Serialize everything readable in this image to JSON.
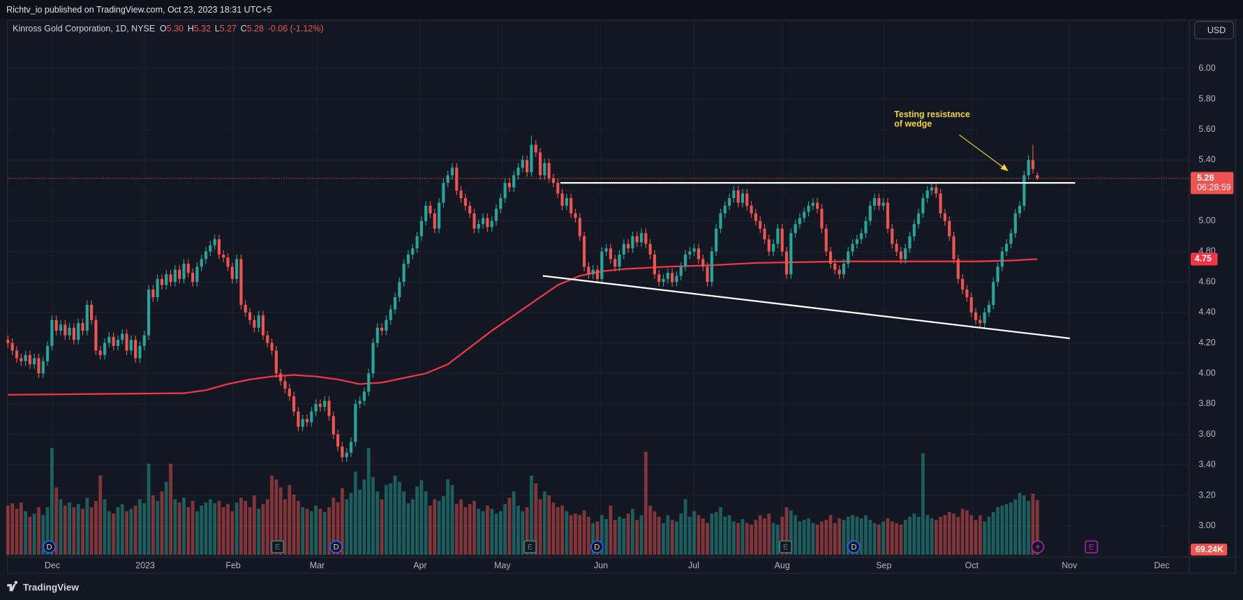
{
  "top_bar": {
    "text": "Richtv_io published on TradingView.com, Oct 23, 2023 18:31 UTC+5"
  },
  "footer": {
    "logo_text": "TradingView"
  },
  "chart_data": {
    "type": "candlestick",
    "title": "Kinross Gold Corporation, 1D, NYSE",
    "header_values": [
      {
        "key": "O",
        "label": "5.30"
      },
      {
        "key": "H",
        "label": "5.32"
      },
      {
        "key": "L",
        "label": "5.27"
      },
      {
        "key": "C",
        "label": "5.28"
      }
    ],
    "header_change": "-0.06 (-1.12%)",
    "currency": "USD",
    "colors": {
      "up": "#26a69a",
      "down": "#ef5350"
    },
    "grid": true,
    "xlim": [
      0,
      268.5
    ],
    "xticks": [
      {
        "value": 10.1,
        "label": "Dec"
      },
      {
        "value": 31.2,
        "label": "2023"
      },
      {
        "value": 51.2,
        "label": "Feb"
      },
      {
        "value": 70.3,
        "label": "Mar"
      },
      {
        "value": 93.7,
        "label": "Apr"
      },
      {
        "value": 112.4,
        "label": "May"
      },
      {
        "value": 134.8,
        "label": "Jun"
      },
      {
        "value": 155.9,
        "label": "Jul"
      },
      {
        "value": 176.0,
        "label": "Aug"
      },
      {
        "value": 199.1,
        "label": "Sep"
      },
      {
        "value": 219.1,
        "label": "Oct"
      },
      {
        "value": 241.3,
        "label": "Nov"
      },
      {
        "value": 262.3,
        "label": "Dec"
      }
    ],
    "ylim": [
      2.81,
      6.2
    ],
    "yticks": [
      {
        "value": 3,
        "label": "3.00"
      },
      {
        "value": 3.2,
        "label": "3.20"
      },
      {
        "value": 3.4,
        "label": "3.40"
      },
      {
        "value": 3.6,
        "label": "3.60"
      },
      {
        "value": 3.8,
        "label": "3.80"
      },
      {
        "value": 4,
        "label": "4.00"
      },
      {
        "value": 4.2,
        "label": "4.20"
      },
      {
        "value": 4.4,
        "label": "4.40"
      },
      {
        "value": 4.6,
        "label": "4.60"
      },
      {
        "value": 4.8,
        "label": "4.80"
      },
      {
        "value": 5,
        "label": "5.00"
      },
      {
        "value": 5.2,
        "label": "5.20"
      },
      {
        "value": 5.4,
        "label": "5.40"
      },
      {
        "value": 5.6,
        "label": "5.60"
      },
      {
        "value": 5.8,
        "label": "5.80"
      },
      {
        "value": 6,
        "label": "6.00"
      }
    ],
    "open": [
      4.22,
      4.2,
      4.15,
      4.1,
      4.08,
      4.12,
      4.06,
      4.1,
      4.0,
      4.08,
      4.18,
      4.35,
      4.28,
      4.32,
      4.25,
      4.3,
      4.22,
      4.33,
      4.28,
      4.45,
      4.35,
      4.15,
      4.12,
      4.2,
      4.24,
      4.18,
      4.22,
      4.26,
      4.15,
      4.22,
      4.1,
      4.18,
      4.25,
      4.55,
      4.5,
      4.62,
      4.58,
      4.65,
      4.6,
      4.68,
      4.62,
      4.72,
      4.66,
      4.6,
      4.7,
      4.75,
      4.8,
      4.84,
      4.88,
      4.78,
      4.76,
      4.7,
      4.62,
      4.75,
      4.45,
      4.4,
      4.35,
      4.3,
      4.38,
      4.25,
      4.2,
      4.15,
      4.0,
      3.95,
      3.9,
      3.85,
      3.75,
      3.65,
      3.7,
      3.68,
      3.75,
      3.8,
      3.78,
      3.82,
      3.72,
      3.6,
      3.52,
      3.45,
      3.48,
      3.55,
      3.8,
      3.82,
      3.88,
      4.0,
      4.2,
      4.3,
      4.28,
      4.35,
      4.42,
      4.5,
      4.6,
      4.72,
      4.78,
      4.82,
      4.9,
      5.0,
      5.1,
      5.05,
      4.95,
      5.12,
      5.25,
      5.3,
      5.35,
      5.2,
      5.15,
      5.1,
      5.05,
      4.95,
      4.98,
      5.02,
      4.96,
      5.0,
      5.08,
      5.15,
      5.25,
      5.22,
      5.3,
      5.35,
      5.4,
      5.32,
      5.5,
      5.45,
      5.3,
      5.38,
      5.28,
      5.25,
      5.18,
      5.1,
      5.15,
      5.05,
      5.02,
      4.9,
      4.7,
      4.65,
      4.68,
      4.62,
      4.8,
      4.82,
      4.75,
      4.7,
      4.78,
      4.85,
      4.82,
      4.9,
      4.86,
      4.92,
      4.85,
      4.78,
      4.65,
      4.6,
      4.62,
      4.66,
      4.6,
      4.64,
      4.7,
      4.78,
      4.8,
      4.82,
      4.75,
      4.7,
      4.6,
      4.8,
      4.95,
      5.05,
      5.1,
      5.15,
      5.2,
      5.12,
      5.18,
      5.1,
      5.05,
      5.0,
      4.95,
      4.88,
      4.8,
      4.85,
      4.95,
      4.8,
      4.65,
      4.92,
      4.98,
      5.02,
      5.06,
      5.1,
      5.12,
      5.08,
      4.95,
      4.8,
      4.72,
      4.68,
      4.65,
      4.72,
      4.8,
      4.85,
      4.88,
      4.92,
      5.0,
      5.1,
      5.15,
      5.1,
      5.12,
      4.95,
      4.85,
      4.8,
      4.75,
      4.82,
      4.9,
      4.98,
      5.05,
      5.15,
      5.2,
      5.22,
      5.18,
      5.05,
      5.0,
      4.9,
      4.75,
      4.62,
      4.55,
      4.5,
      4.4,
      4.35,
      4.33,
      4.4,
      4.45,
      4.6,
      4.7,
      4.8,
      4.85,
      4.92,
      5.05,
      5.1,
      5.3,
      5.4,
      5.3
    ],
    "high": [
      4.25,
      4.23,
      4.18,
      4.13,
      4.15,
      4.15,
      4.13,
      4.13,
      4.11,
      4.21,
      4.38,
      4.38,
      4.35,
      4.35,
      4.33,
      4.33,
      4.36,
      4.36,
      4.48,
      4.48,
      4.38,
      4.18,
      4.23,
      4.27,
      4.27,
      4.25,
      4.29,
      4.29,
      4.25,
      4.25,
      4.21,
      4.28,
      4.58,
      4.58,
      4.65,
      4.65,
      4.68,
      4.68,
      4.71,
      4.71,
      4.75,
      4.75,
      4.69,
      4.73,
      4.78,
      4.83,
      4.87,
      4.91,
      4.91,
      4.81,
      4.79,
      4.73,
      4.78,
      4.78,
      4.48,
      4.43,
      4.38,
      4.41,
      4.41,
      4.28,
      4.23,
      4.18,
      4.03,
      3.98,
      3.93,
      3.88,
      3.78,
      3.73,
      3.73,
      3.78,
      3.83,
      3.83,
      3.85,
      3.85,
      3.75,
      3.63,
      3.55,
      3.51,
      3.58,
      3.83,
      3.85,
      3.91,
      4.03,
      4.23,
      4.33,
      4.33,
      4.38,
      4.45,
      4.53,
      4.63,
      4.75,
      4.81,
      4.85,
      4.93,
      5.03,
      5.13,
      5.13,
      5.08,
      5.15,
      5.28,
      5.33,
      5.38,
      5.38,
      5.23,
      5.18,
      5.13,
      5.08,
      5.01,
      5.05,
      5.05,
      5.03,
      5.11,
      5.18,
      5.28,
      5.28,
      5.33,
      5.38,
      5.43,
      5.43,
      5.56,
      5.53,
      5.48,
      5.41,
      5.41,
      5.31,
      5.28,
      5.21,
      5.18,
      5.18,
      5.08,
      5.05,
      4.93,
      4.73,
      4.71,
      4.71,
      4.83,
      4.85,
      4.85,
      4.78,
      4.81,
      4.88,
      4.88,
      4.93,
      4.93,
      4.95,
      4.95,
      4.88,
      4.81,
      4.68,
      4.65,
      4.69,
      4.69,
      4.67,
      4.73,
      4.81,
      4.83,
      4.85,
      4.85,
      4.78,
      4.73,
      4.83,
      4.98,
      5.08,
      5.13,
      5.18,
      5.23,
      5.23,
      5.21,
      5.21,
      5.13,
      5.08,
      5.03,
      4.98,
      4.91,
      4.88,
      4.98,
      4.98,
      4.83,
      4.95,
      5.01,
      5.05,
      5.09,
      5.13,
      5.15,
      5.15,
      5.11,
      4.98,
      4.83,
      4.75,
      4.71,
      4.75,
      4.83,
      4.88,
      4.91,
      4.95,
      5.03,
      5.13,
      5.18,
      5.18,
      5.15,
      5.15,
      4.98,
      4.88,
      4.83,
      4.85,
      4.93,
      5.01,
      5.08,
      5.18,
      5.23,
      5.25,
      5.25,
      5.21,
      5.08,
      5.03,
      4.93,
      4.78,
      4.65,
      4.58,
      4.53,
      4.43,
      4.38,
      4.43,
      4.48,
      4.63,
      4.73,
      4.83,
      4.88,
      4.95,
      5.08,
      5.13,
      5.33,
      5.43,
      5.5,
      5.32
    ],
    "low": [
      4.17,
      4.12,
      4.07,
      4.05,
      4.05,
      4.03,
      4.03,
      3.97,
      3.97,
      4.05,
      4.15,
      4.25,
      4.25,
      4.22,
      4.22,
      4.19,
      4.19,
      4.25,
      4.25,
      4.32,
      4.12,
      4.09,
      4.09,
      4.17,
      4.15,
      4.15,
      4.19,
      4.12,
      4.12,
      4.07,
      4.07,
      4.15,
      4.22,
      4.47,
      4.47,
      4.55,
      4.55,
      4.57,
      4.57,
      4.59,
      4.59,
      4.63,
      4.57,
      4.57,
      4.67,
      4.72,
      4.77,
      4.81,
      4.75,
      4.73,
      4.67,
      4.59,
      4.59,
      4.42,
      4.37,
      4.32,
      4.27,
      4.27,
      4.22,
      4.17,
      4.12,
      3.97,
      3.92,
      3.87,
      3.82,
      3.72,
      3.62,
      3.62,
      3.65,
      3.65,
      3.72,
      3.75,
      3.75,
      3.69,
      3.57,
      3.49,
      3.42,
      3.42,
      3.45,
      3.52,
      3.77,
      3.79,
      3.85,
      3.97,
      4.17,
      4.25,
      4.25,
      4.32,
      4.39,
      4.47,
      4.57,
      4.69,
      4.75,
      4.79,
      4.87,
      4.97,
      5.02,
      4.92,
      4.92,
      5.09,
      5.22,
      5.27,
      5.17,
      5.12,
      5.07,
      5.02,
      4.92,
      4.92,
      4.95,
      4.93,
      4.93,
      4.97,
      5.05,
      5.12,
      5.19,
      5.19,
      5.27,
      5.32,
      5.29,
      5.29,
      5.42,
      5.27,
      5.27,
      5.25,
      5.22,
      5.15,
      5.07,
      5.07,
      5.02,
      4.99,
      4.87,
      4.67,
      4.62,
      4.62,
      4.59,
      4.59,
      4.77,
      4.72,
      4.67,
      4.67,
      4.75,
      4.79,
      4.79,
      4.83,
      4.83,
      4.82,
      4.75,
      4.62,
      4.57,
      4.57,
      4.59,
      4.57,
      4.57,
      4.61,
      4.67,
      4.75,
      4.77,
      4.72,
      4.67,
      4.57,
      4.57,
      4.77,
      4.92,
      5.02,
      5.07,
      5.12,
      5.09,
      5.09,
      5.07,
      5.02,
      4.97,
      4.92,
      4.85,
      4.77,
      4.77,
      4.82,
      4.77,
      4.62,
      4.62,
      4.89,
      4.95,
      4.99,
      5.03,
      5.07,
      5.05,
      4.92,
      4.77,
      4.69,
      4.65,
      4.62,
      4.62,
      4.69,
      4.77,
      4.82,
      4.85,
      4.89,
      4.97,
      5.07,
      5.07,
      5.07,
      4.92,
      4.82,
      4.77,
      4.72,
      4.72,
      4.79,
      4.87,
      4.95,
      5.02,
      5.12,
      5.17,
      5.15,
      5.02,
      4.97,
      4.87,
      4.72,
      4.59,
      4.52,
      4.47,
      4.37,
      4.32,
      4.3,
      4.3,
      4.37,
      4.42,
      4.57,
      4.67,
      4.77,
      4.82,
      4.89,
      5.02,
      5.07,
      5.27,
      5.31,
      5.27
    ],
    "close": [
      4.2,
      4.15,
      4.1,
      4.08,
      4.12,
      4.06,
      4.1,
      4.0,
      4.08,
      4.18,
      4.35,
      4.28,
      4.32,
      4.25,
      4.3,
      4.22,
      4.33,
      4.28,
      4.45,
      4.35,
      4.15,
      4.12,
      4.2,
      4.24,
      4.18,
      4.22,
      4.26,
      4.15,
      4.22,
      4.1,
      4.18,
      4.25,
      4.55,
      4.5,
      4.62,
      4.58,
      4.65,
      4.6,
      4.68,
      4.62,
      4.72,
      4.66,
      4.6,
      4.7,
      4.75,
      4.8,
      4.84,
      4.88,
      4.78,
      4.76,
      4.7,
      4.62,
      4.75,
      4.45,
      4.4,
      4.35,
      4.3,
      4.38,
      4.25,
      4.2,
      4.15,
      4.0,
      3.95,
      3.9,
      3.85,
      3.75,
      3.65,
      3.7,
      3.68,
      3.75,
      3.8,
      3.78,
      3.82,
      3.72,
      3.6,
      3.52,
      3.45,
      3.48,
      3.55,
      3.8,
      3.82,
      3.88,
      4.0,
      4.2,
      4.3,
      4.28,
      4.35,
      4.42,
      4.5,
      4.6,
      4.72,
      4.78,
      4.82,
      4.9,
      5.0,
      5.1,
      5.05,
      4.95,
      5.12,
      5.25,
      5.3,
      5.35,
      5.2,
      5.15,
      5.1,
      5.05,
      4.95,
      4.98,
      5.02,
      4.96,
      5.0,
      5.08,
      5.15,
      5.25,
      5.22,
      5.3,
      5.35,
      5.4,
      5.32,
      5.5,
      5.45,
      5.3,
      5.38,
      5.28,
      5.25,
      5.18,
      5.1,
      5.15,
      5.05,
      5.02,
      4.9,
      4.7,
      4.65,
      4.68,
      4.62,
      4.8,
      4.82,
      4.75,
      4.7,
      4.78,
      4.85,
      4.82,
      4.9,
      4.86,
      4.92,
      4.85,
      4.78,
      4.65,
      4.6,
      4.62,
      4.66,
      4.6,
      4.64,
      4.7,
      4.78,
      4.8,
      4.82,
      4.75,
      4.7,
      4.6,
      4.8,
      4.95,
      5.05,
      5.1,
      5.15,
      5.2,
      5.12,
      5.18,
      5.1,
      5.05,
      5.0,
      4.95,
      4.88,
      4.8,
      4.85,
      4.95,
      4.8,
      4.65,
      4.92,
      4.98,
      5.02,
      5.06,
      5.1,
      5.12,
      5.08,
      4.95,
      4.8,
      4.72,
      4.68,
      4.65,
      4.72,
      4.8,
      4.85,
      4.88,
      4.92,
      5.0,
      5.1,
      5.15,
      5.1,
      5.12,
      4.95,
      4.85,
      4.8,
      4.75,
      4.82,
      4.9,
      4.98,
      5.05,
      5.15,
      5.2,
      5.22,
      5.18,
      5.05,
      5.0,
      4.9,
      4.75,
      4.62,
      4.55,
      4.5,
      4.4,
      4.35,
      4.33,
      4.4,
      4.45,
      4.6,
      4.7,
      4.8,
      4.85,
      4.92,
      5.05,
      5.1,
      5.3,
      5.4,
      5.34,
      5.28
    ],
    "last_price_countdown": "06:28:59",
    "volume": {
      "ylim": [
        0,
        150000
      ],
      "last_label": "69.24K",
      "values": [
        62000,
        65000,
        58000,
        66000,
        55000,
        48000,
        52000,
        60000,
        50000,
        60000,
        135000,
        85000,
        70000,
        62000,
        66000,
        60000,
        64000,
        58000,
        72000,
        60000,
        68000,
        100000,
        70000,
        55000,
        52000,
        60000,
        64000,
        55000,
        58000,
        62000,
        70000,
        65000,
        115000,
        75000,
        68000,
        80000,
        92000,
        115000,
        70000,
        66000,
        72000,
        60000,
        68000,
        55000,
        62000,
        66000,
        70000,
        65000,
        68000,
        60000,
        64000,
        55000,
        66000,
        72000,
        68000,
        60000,
        75000,
        58000,
        64000,
        70000,
        100000,
        95000,
        85000,
        70000,
        88000,
        76000,
        68000,
        60000,
        58000,
        55000,
        62000,
        58000,
        54000,
        60000,
        72000,
        66000,
        84000,
        70000,
        78000,
        105000,
        82000,
        95000,
        135000,
        98000,
        80000,
        70000,
        88000,
        90000,
        100000,
        92000,
        80000,
        65000,
        70000,
        86000,
        94000,
        80000,
        62000,
        70000,
        68000,
        74000,
        95000,
        88000,
        64000,
        70000,
        60000,
        64000,
        68000,
        58000,
        55000,
        62000,
        58000,
        52000,
        55000,
        64000,
        72000,
        80000,
        62000,
        55000,
        60000,
        100000,
        90000,
        70000,
        80000,
        75000,
        66000,
        60000,
        62000,
        55000,
        50000,
        52000,
        50000,
        56000,
        48000,
        40000,
        42000,
        50000,
        45000,
        62000,
        44000,
        48000,
        46000,
        52000,
        58000,
        44000,
        50000,
        130000,
        62000,
        55000,
        48000,
        40000,
        50000,
        44000,
        42000,
        52000,
        70000,
        48000,
        55000,
        50000,
        46000,
        40000,
        52000,
        54000,
        60000,
        48000,
        50000,
        42000,
        40000,
        45000,
        40000,
        38000,
        44000,
        50000,
        46000,
        52000,
        40000,
        38000,
        48000,
        60000,
        56000,
        50000,
        42000,
        44000,
        46000,
        40000,
        38000,
        42000,
        44000,
        50000,
        40000,
        46000,
        44000,
        48000,
        50000,
        48000,
        46000,
        50000,
        44000,
        40000,
        38000,
        42000,
        46000,
        42000,
        40000,
        38000,
        44000,
        48000,
        52000,
        48000,
        128000,
        50000,
        46000,
        44000,
        48000,
        50000,
        54000,
        52000,
        48000,
        58000,
        56000,
        50000,
        44000,
        50000,
        42000,
        48000,
        54000,
        60000,
        62000,
        64000,
        66000,
        70000,
        78000,
        75000,
        68000,
        77000,
        69240
      ]
    },
    "moving_average": {
      "color": "#f23645",
      "x": [
        0,
        40,
        45,
        50,
        55,
        60,
        65,
        70,
        75,
        80,
        85,
        90,
        95,
        100,
        105,
        110,
        115,
        120,
        125,
        130,
        135,
        140,
        150,
        160,
        170,
        180,
        190,
        200,
        210,
        220,
        228,
        234
      ],
      "values": [
        3.86,
        3.87,
        3.89,
        3.93,
        3.96,
        3.98,
        3.99,
        3.98,
        3.96,
        3.93,
        3.94,
        3.97,
        4.0,
        4.06,
        4.17,
        4.28,
        4.38,
        4.48,
        4.58,
        4.64,
        4.67,
        4.685,
        4.7,
        4.71,
        4.725,
        4.73,
        4.735,
        4.735,
        4.735,
        4.735,
        4.74,
        4.75
      ]
    },
    "trendlines": [
      {
        "color": "#ffffff",
        "x": [
          125.6,
          242.6
        ],
        "values": [
          5.25,
          5.25
        ]
      },
      {
        "color": "#ffffff",
        "x": [
          121.6,
          241.4
        ],
        "values": [
          4.64,
          4.23
        ]
      }
    ],
    "annotation": {
      "color": "#f0d43a",
      "lines": [
        "Testing resistance",
        "of wedge"
      ]
    },
    "events": [
      {
        "label": "D",
        "x": 9.4,
        "color": "#2962ff"
      },
      {
        "label": "E",
        "x": 61.3,
        "color": "#4f7a6f"
      },
      {
        "label": "D",
        "x": 74.6,
        "color": "#2962ff"
      },
      {
        "label": "E",
        "x": 118.7,
        "color": "#4f7a6f"
      },
      {
        "label": "D",
        "x": 133.9,
        "color": "#2962ff"
      },
      {
        "label": "E",
        "x": 176.8,
        "color": "#4f7a6f"
      },
      {
        "label": "D",
        "x": 192.3,
        "color": "#2962ff"
      },
      {
        "x": 234.1,
        "color": "#9c27b0"
      },
      {
        "label": "E",
        "x": 246.3,
        "color": "#9c27b0"
      }
    ]
  }
}
